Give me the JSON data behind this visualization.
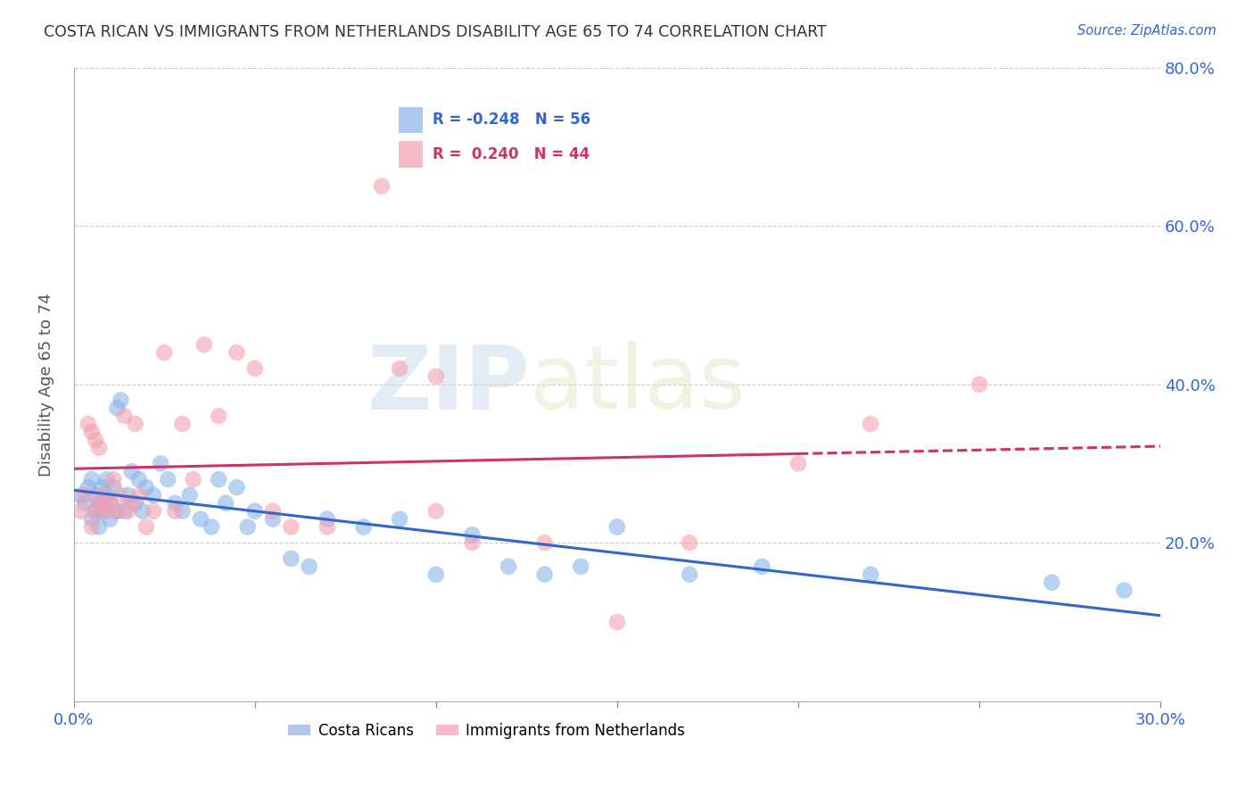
{
  "title": "COSTA RICAN VS IMMIGRANTS FROM NETHERLANDS DISABILITY AGE 65 TO 74 CORRELATION CHART",
  "source": "Source: ZipAtlas.com",
  "ylabel": "Disability Age 65 to 74",
  "xlim": [
    0.0,
    0.3
  ],
  "ylim": [
    0.0,
    0.8
  ],
  "blue_color": "#8ab4e8",
  "pink_color": "#f4a0b0",
  "blue_line_color": "#3366cc",
  "pink_line_color": "#cc3366",
  "blue_R": -0.248,
  "blue_N": 56,
  "pink_R": 0.24,
  "pink_N": 44,
  "legend_label_blue": "Costa Ricans",
  "legend_label_pink": "Immigrants from Netherlands",
  "watermark_zip": "ZIP",
  "watermark_atlas": "atlas",
  "blue_scatter_x": [
    0.002,
    0.003,
    0.004,
    0.005,
    0.005,
    0.006,
    0.006,
    0.007,
    0.007,
    0.008,
    0.008,
    0.009,
    0.009,
    0.01,
    0.01,
    0.011,
    0.012,
    0.012,
    0.013,
    0.014,
    0.015,
    0.016,
    0.017,
    0.018,
    0.019,
    0.02,
    0.022,
    0.024,
    0.026,
    0.028,
    0.03,
    0.032,
    0.035,
    0.038,
    0.04,
    0.042,
    0.045,
    0.048,
    0.05,
    0.055,
    0.06,
    0.065,
    0.07,
    0.08,
    0.09,
    0.1,
    0.11,
    0.12,
    0.13,
    0.14,
    0.15,
    0.17,
    0.19,
    0.22,
    0.27,
    0.29
  ],
  "blue_scatter_y": [
    0.26,
    0.25,
    0.27,
    0.23,
    0.28,
    0.24,
    0.26,
    0.25,
    0.22,
    0.27,
    0.24,
    0.26,
    0.28,
    0.25,
    0.23,
    0.27,
    0.37,
    0.24,
    0.38,
    0.24,
    0.26,
    0.29,
    0.25,
    0.28,
    0.24,
    0.27,
    0.26,
    0.3,
    0.28,
    0.25,
    0.24,
    0.26,
    0.23,
    0.22,
    0.28,
    0.25,
    0.27,
    0.22,
    0.24,
    0.23,
    0.18,
    0.17,
    0.23,
    0.22,
    0.23,
    0.16,
    0.21,
    0.17,
    0.16,
    0.17,
    0.22,
    0.16,
    0.17,
    0.16,
    0.15,
    0.14
  ],
  "pink_scatter_x": [
    0.002,
    0.003,
    0.004,
    0.005,
    0.005,
    0.006,
    0.006,
    0.007,
    0.007,
    0.008,
    0.009,
    0.01,
    0.011,
    0.012,
    0.013,
    0.014,
    0.015,
    0.016,
    0.017,
    0.018,
    0.02,
    0.022,
    0.025,
    0.028,
    0.03,
    0.033,
    0.036,
    0.04,
    0.045,
    0.05,
    0.055,
    0.06,
    0.07,
    0.085,
    0.09,
    0.1,
    0.11,
    0.13,
    0.15,
    0.17,
    0.2,
    0.22,
    0.25,
    0.1
  ],
  "pink_scatter_y": [
    0.24,
    0.26,
    0.35,
    0.22,
    0.34,
    0.24,
    0.33,
    0.25,
    0.32,
    0.26,
    0.24,
    0.25,
    0.28,
    0.24,
    0.26,
    0.36,
    0.24,
    0.25,
    0.35,
    0.26,
    0.22,
    0.24,
    0.44,
    0.24,
    0.35,
    0.28,
    0.45,
    0.36,
    0.44,
    0.42,
    0.24,
    0.22,
    0.22,
    0.65,
    0.42,
    0.24,
    0.2,
    0.2,
    0.1,
    0.2,
    0.3,
    0.35,
    0.4,
    0.41
  ]
}
